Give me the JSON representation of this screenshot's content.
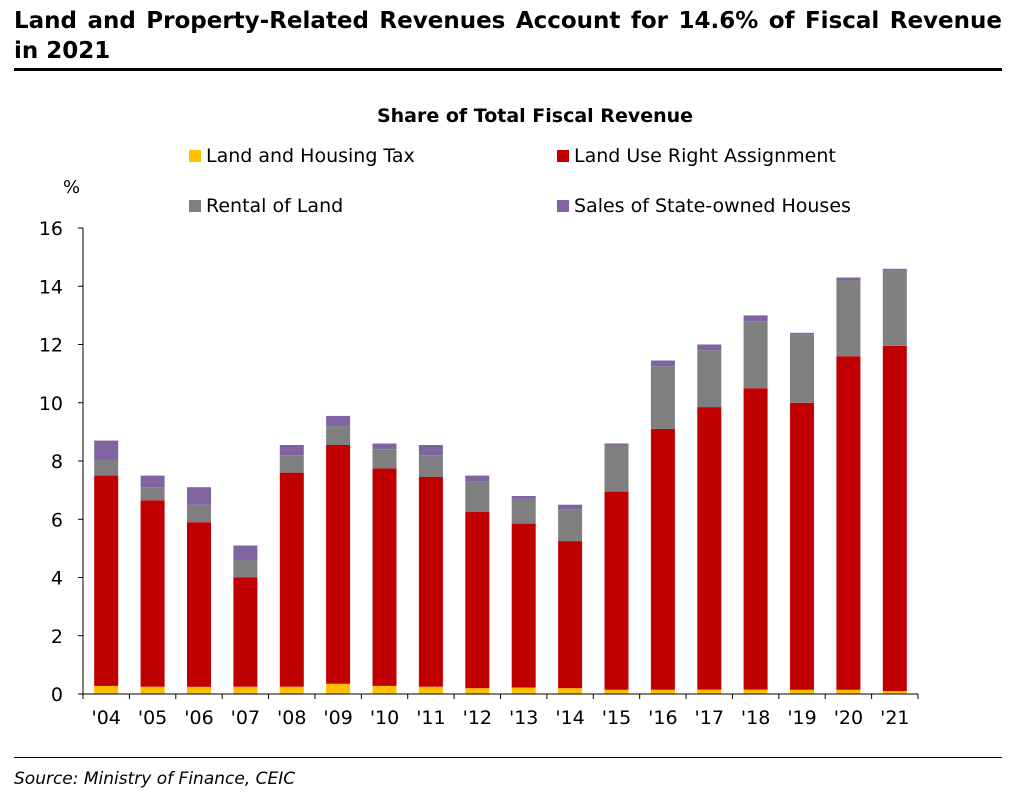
{
  "header": {
    "title": "Land and Property-Related Revenues Account for 14.6% of Fiscal Revenue in 2021"
  },
  "footer": {
    "source": "Source: Ministry of Finance, CEIC"
  },
  "chart_data": {
    "type": "bar",
    "stacked": true,
    "title": "Share of Total Fiscal Revenue",
    "xlabel": "",
    "ylabel": "%",
    "ylim": [
      0,
      16
    ],
    "yticks": [
      "0",
      "2",
      "4",
      "6",
      "8",
      "10",
      "12",
      "14",
      "16"
    ],
    "grid": false,
    "legend_position": "top",
    "categories": [
      "'04",
      "'05",
      "'06",
      "'07",
      "'08",
      "'09",
      "'10",
      "'11",
      "'12",
      "'13",
      "'14",
      "'15",
      "'16",
      "'17",
      "'18",
      "'19",
      "'20",
      "'21"
    ],
    "series": [
      {
        "name": "Land and Housing Tax",
        "color": "#ffc000",
        "values": [
          0.28,
          0.25,
          0.25,
          0.25,
          0.25,
          0.35,
          0.28,
          0.25,
          0.2,
          0.22,
          0.2,
          0.15,
          0.15,
          0.15,
          0.15,
          0.15,
          0.15,
          0.1
        ]
      },
      {
        "name": "Land Use Right Assignment",
        "color": "#c00000",
        "values": [
          7.22,
          6.4,
          5.65,
          3.75,
          7.35,
          8.2,
          7.47,
          7.2,
          6.05,
          5.63,
          5.05,
          6.8,
          8.95,
          9.7,
          10.35,
          9.85,
          11.45,
          11.85
        ]
      },
      {
        "name": "Rental of Land",
        "color": "#7f7f7f",
        "values": [
          0.55,
          0.45,
          0.6,
          0.6,
          0.6,
          0.65,
          0.65,
          0.75,
          1.05,
          0.85,
          1.1,
          1.6,
          2.15,
          1.95,
          2.3,
          2.35,
          2.6,
          2.6
        ]
      },
      {
        "name": "Sales of State-owned Houses",
        "color": "#8064a2",
        "values": [
          0.65,
          0.4,
          0.6,
          0.5,
          0.35,
          0.35,
          0.2,
          0.35,
          0.2,
          0.1,
          0.15,
          0.05,
          0.2,
          0.2,
          0.2,
          0.05,
          0.1,
          0.05
        ]
      }
    ]
  }
}
